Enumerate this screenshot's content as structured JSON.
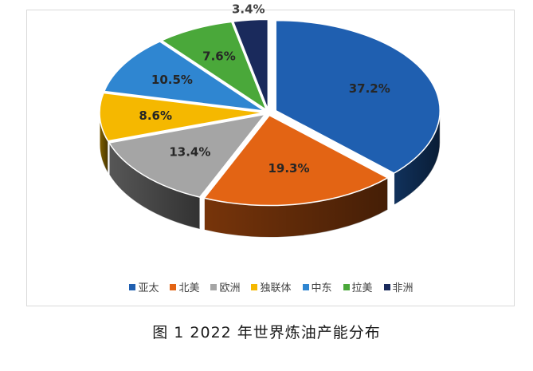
{
  "chart_data": {
    "type": "pie",
    "title": "",
    "categories": [
      "亚太",
      "北美",
      "欧洲",
      "独联体",
      "中东",
      "拉美",
      "非洲"
    ],
    "values": [
      37.2,
      19.3,
      13.4,
      8.6,
      10.5,
      7.6,
      3.4
    ],
    "value_labels": [
      "37.2%",
      "19.3%",
      "13.4%",
      "8.6%",
      "10.5%",
      "7.6%",
      "3.4%"
    ],
    "colors": [
      "#1f5fb0",
      "#e36414",
      "#a5a5a5",
      "#f5b800",
      "#2f86d1",
      "#4aa83a",
      "#1a2a5c"
    ],
    "style": "3d-exploded",
    "legend": "bottom"
  },
  "caption": "图 1 2022 年世界炼油产能分布"
}
